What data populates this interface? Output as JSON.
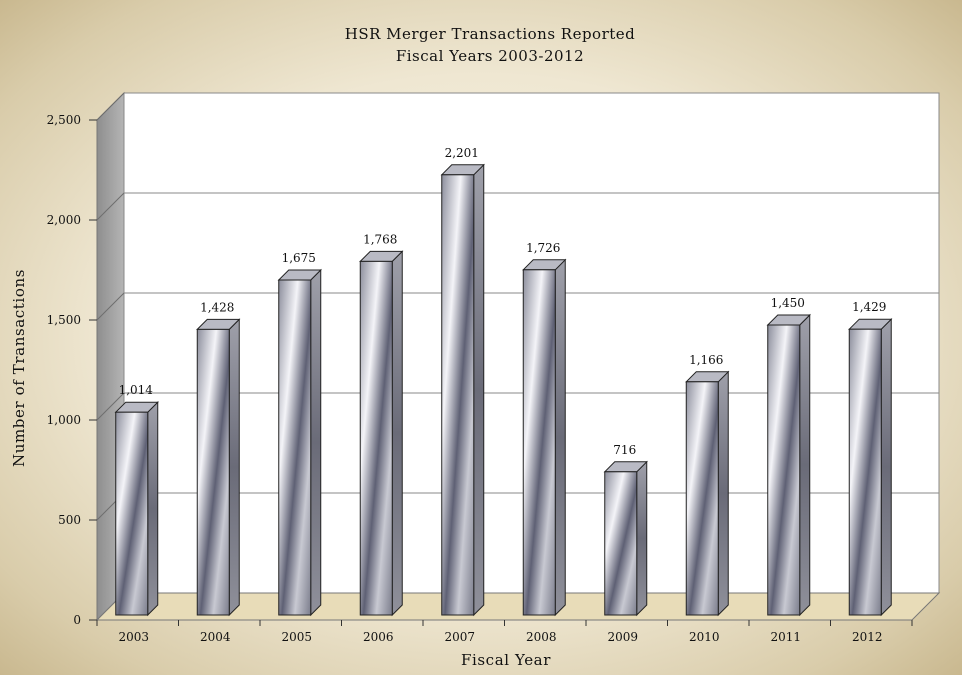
{
  "chart_data": {
    "type": "bar",
    "title": "HSR Merger Transactions Reported",
    "subtitle": "Fiscal Years 2003-2012",
    "xlabel": "Fiscal Year",
    "ylabel": "Number of Transactions",
    "categories": [
      "2003",
      "2004",
      "2005",
      "2006",
      "2007",
      "2008",
      "2009",
      "2010",
      "2011",
      "2012"
    ],
    "values": [
      1014,
      1428,
      1675,
      1768,
      2201,
      1726,
      716,
      1166,
      1450,
      1429
    ],
    "value_labels": [
      "1,014",
      "1,428",
      "1,675",
      "1,768",
      "2,201",
      "1,726",
      "716",
      "1,166",
      "1,450",
      "1,429"
    ],
    "yticks": [
      0,
      500,
      1000,
      1500,
      2000,
      2500
    ],
    "ytick_labels": [
      "0",
      "500",
      "1,000",
      "1,500",
      "2,000",
      "2,500"
    ],
    "ylim": [
      0,
      2500
    ],
    "grid": true,
    "legend": "none"
  },
  "colors": {
    "wall_back": "#ffffff",
    "wall_side": "#9c9c9c",
    "floor": "#e8dcb8",
    "gridline": "#8a8a8a",
    "bar_light": "#f2f2f6",
    "bar_dark": "#5a5c70"
  }
}
